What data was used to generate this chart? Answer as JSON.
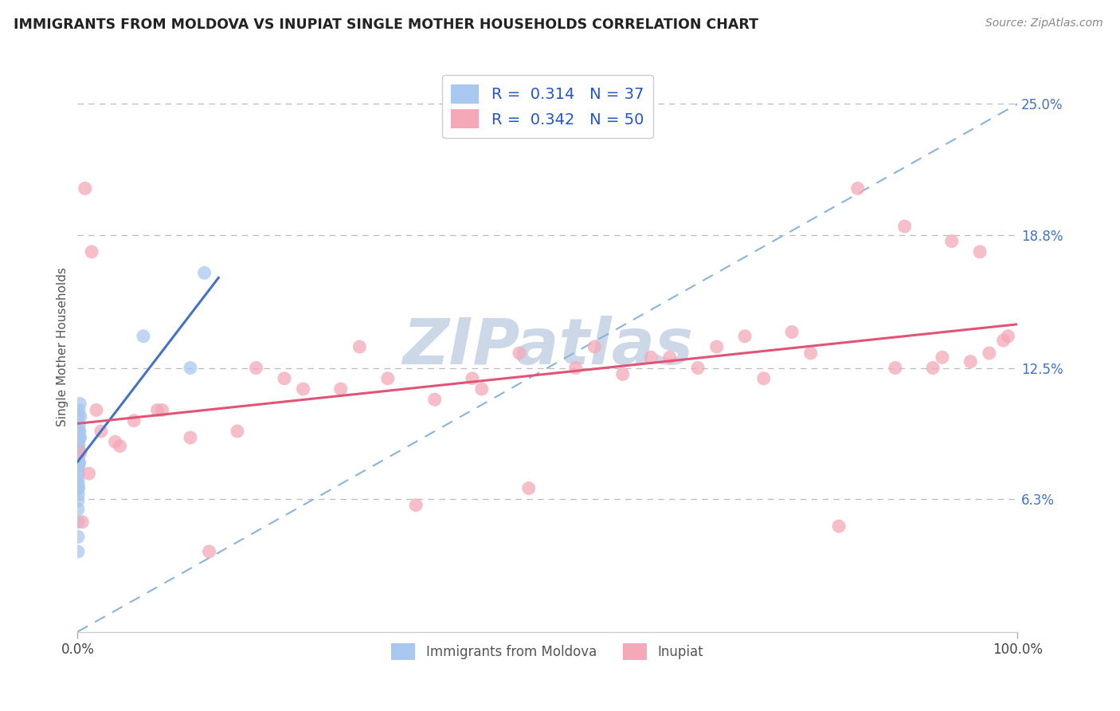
{
  "title": "IMMIGRANTS FROM MOLDOVA VS INUPIAT SINGLE MOTHER HOUSEHOLDS CORRELATION CHART",
  "source": "Source: ZipAtlas.com",
  "ylabel": "Single Mother Households",
  "x_min": 0.0,
  "x_max": 100.0,
  "y_min": 0.0,
  "y_max": 27.0,
  "y_ticks": [
    6.3,
    12.5,
    18.8,
    25.0
  ],
  "R_blue": 0.314,
  "N_blue": 37,
  "R_pink": 0.342,
  "N_pink": 50,
  "color_blue": "#a8c8f0",
  "color_pink": "#f4a8b8",
  "trendline_blue": "#4472c4",
  "trendline_pink": "#e05575",
  "diag_color": "#8ab4d8",
  "legend_label_blue": "Immigrants from Moldova",
  "legend_label_pink": "Inupiat",
  "background_color": "#ffffff",
  "grid_color": "#bbbbbb",
  "watermark": "ZIPatlas",
  "watermark_color": "#ccd8e8",
  "blue_x": [
    0.05,
    0.05,
    0.05,
    0.05,
    0.05,
    0.05,
    0.05,
    0.05,
    0.05,
    0.05,
    0.08,
    0.08,
    0.08,
    0.08,
    0.08,
    0.1,
    0.1,
    0.1,
    0.1,
    0.1,
    0.12,
    0.12,
    0.15,
    0.15,
    0.15,
    0.18,
    0.18,
    0.2,
    0.2,
    0.22,
    0.25,
    0.28,
    0.3,
    7.0,
    12.0,
    13.5,
    0.05
  ],
  "blue_y": [
    9.5,
    8.8,
    8.2,
    7.8,
    7.2,
    6.8,
    6.2,
    5.8,
    5.2,
    4.5,
    9.2,
    8.5,
    7.8,
    7.0,
    6.5,
    10.2,
    9.0,
    8.2,
    7.5,
    6.8,
    9.5,
    8.8,
    10.5,
    9.2,
    8.0,
    9.8,
    8.5,
    9.2,
    8.0,
    9.5,
    10.8,
    9.2,
    10.2,
    14.0,
    12.5,
    17.0,
    3.8
  ],
  "pink_x": [
    0.3,
    0.8,
    1.5,
    2.5,
    4.0,
    6.0,
    8.5,
    12.0,
    17.0,
    22.0,
    28.0,
    33.0,
    38.0,
    43.0,
    48.0,
    53.0,
    58.0,
    63.0,
    68.0,
    73.0,
    78.0,
    83.0,
    88.0,
    91.0,
    93.0,
    95.0,
    97.0,
    98.5,
    0.5,
    1.2,
    2.0,
    4.5,
    9.0,
    14.0,
    19.0,
    24.0,
    30.0,
    36.0,
    42.0,
    47.0,
    55.0,
    61.0,
    66.0,
    71.0,
    76.0,
    81.0,
    87.0,
    92.0,
    96.0,
    99.0
  ],
  "pink_y": [
    8.5,
    21.0,
    18.0,
    9.5,
    9.0,
    10.0,
    10.5,
    9.2,
    9.5,
    12.0,
    11.5,
    12.0,
    11.0,
    11.5,
    6.8,
    12.5,
    12.2,
    13.0,
    13.5,
    12.0,
    13.2,
    21.0,
    19.2,
    12.5,
    18.5,
    12.8,
    13.2,
    13.8,
    5.2,
    7.5,
    10.5,
    8.8,
    10.5,
    3.8,
    12.5,
    11.5,
    13.5,
    6.0,
    12.0,
    13.2,
    13.5,
    13.0,
    12.5,
    14.0,
    14.2,
    5.0,
    12.5,
    13.0,
    18.0,
    14.0
  ]
}
